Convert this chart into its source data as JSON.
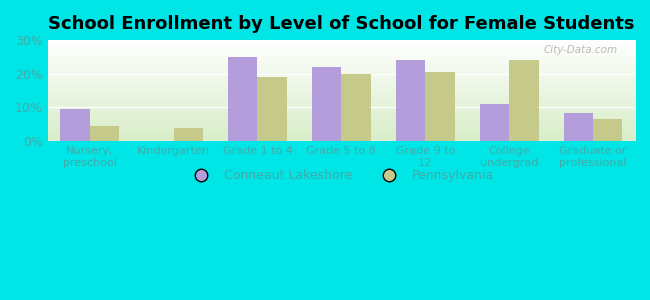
{
  "title": "School Enrollment by Level of School for Female Students",
  "categories": [
    "Nursery,\npreschool",
    "Kindergarten",
    "Grade 1 to 4",
    "Grade 5 to 8",
    "Grade 9 to\n12",
    "College\nundergrad",
    "Graduate or\nprofessional"
  ],
  "conneaut": [
    9.5,
    0.0,
    25.0,
    22.0,
    24.0,
    11.0,
    8.5
  ],
  "pennsylvania": [
    4.5,
    4.0,
    19.0,
    20.0,
    20.5,
    24.0,
    6.5
  ],
  "conneaut_color": "#b39ddb",
  "pennsylvania_color": "#c5c98a",
  "bar_width": 0.35,
  "ylim": [
    0,
    30
  ],
  "yticks": [
    0,
    10,
    20,
    30
  ],
  "ytick_labels": [
    "0%",
    "10%",
    "20%",
    "30%"
  ],
  "background_color": "#00e5e5",
  "plot_bg_top": "#ffffff",
  "plot_bg_bottom": "#d8edc8",
  "legend_conneaut": "Conneaut Lakeshore",
  "legend_pennsylvania": "Pennsylvania",
  "grid_color": "#ffffff",
  "tick_label_color": "#44aaaa",
  "title_fontsize": 13,
  "watermark": "City-Data.com"
}
